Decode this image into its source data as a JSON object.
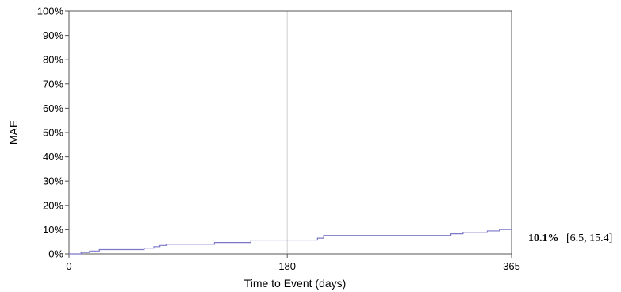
{
  "chart_data": {
    "type": "line",
    "title": "",
    "xlabel": "Time to Event (days)",
    "ylabel": "MAE",
    "xlim": [
      0,
      365
    ],
    "ylim": [
      0,
      100
    ],
    "x_ticks": [
      0,
      180,
      365
    ],
    "y_ticks": [
      0,
      10,
      20,
      30,
      40,
      50,
      60,
      70,
      80,
      90,
      100
    ],
    "y_tick_labels": [
      "0%",
      "10%",
      "20%",
      "30%",
      "40%",
      "50%",
      "60%",
      "70%",
      "80%",
      "90%",
      "100%"
    ],
    "reference_line_x": 180,
    "grid": false,
    "line_color": "#7b78c8",
    "series": [
      {
        "x": [
          0,
          10,
          17,
          25,
          62,
          70,
          75,
          80,
          120,
          150,
          205,
          210,
          315,
          325,
          345,
          355,
          365
        ],
        "y": [
          0,
          0.6,
          1.2,
          1.8,
          2.4,
          3.0,
          3.5,
          4.0,
          4.7,
          5.7,
          6.5,
          7.6,
          8.3,
          8.9,
          9.5,
          10.1,
          10.1
        ]
      }
    ],
    "annotation": {
      "value": "10.1%",
      "ci": "[6.5, 15.4]"
    }
  }
}
